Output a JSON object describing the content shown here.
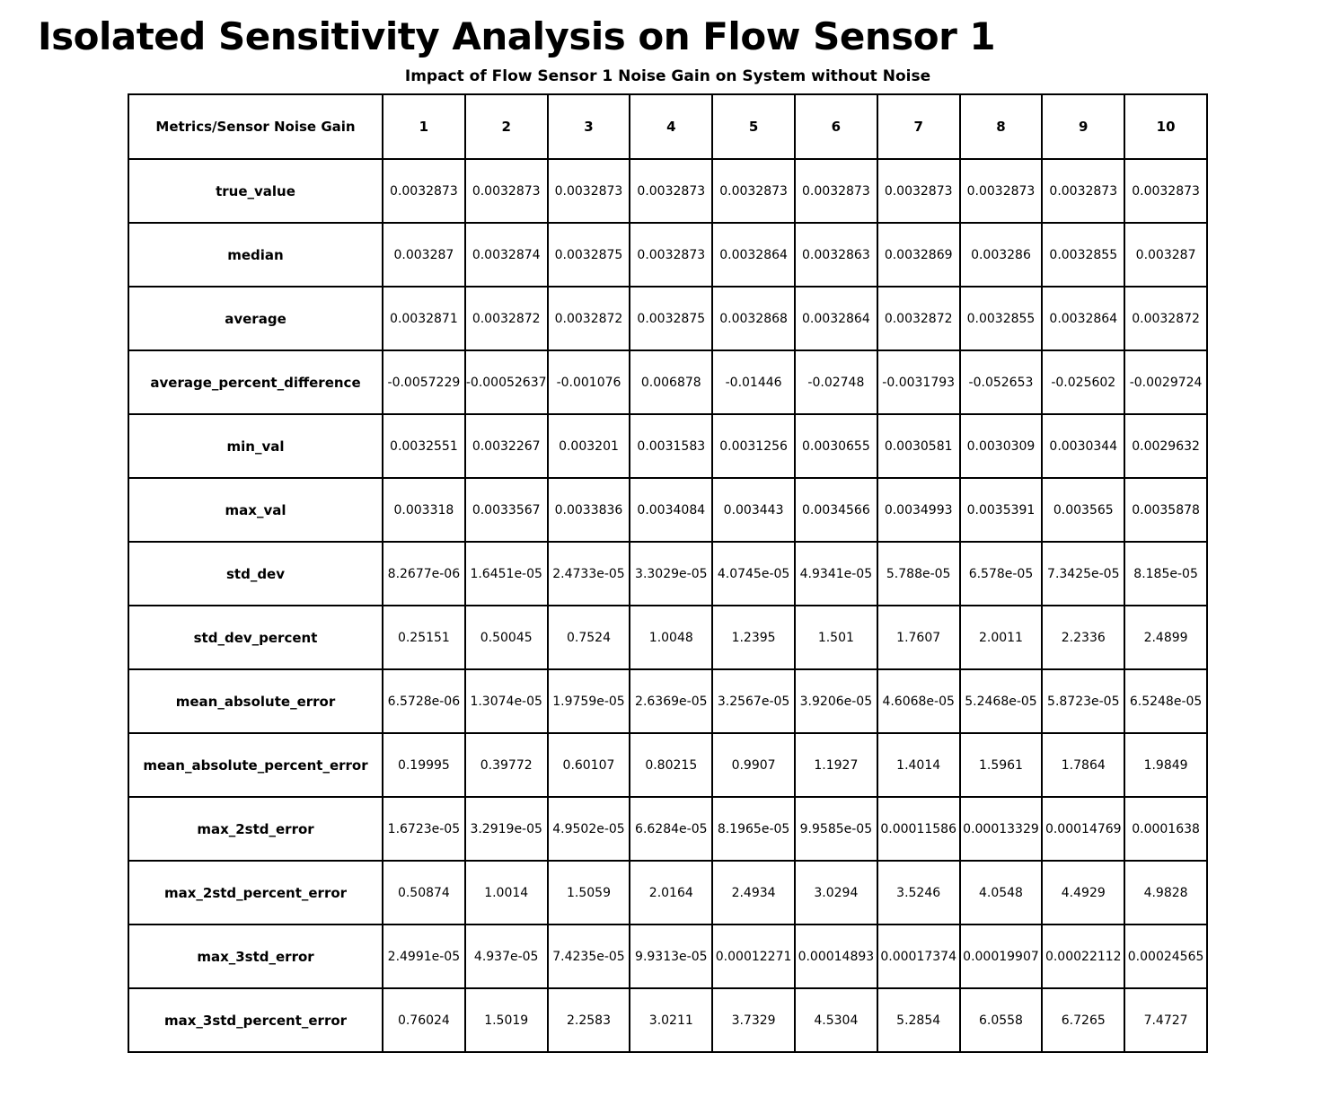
{
  "page": {
    "title": "Isolated Sensitivity Analysis on Flow Sensor 1",
    "subtitle": "Impact of Flow Sensor 1 Noise Gain on System without Noise"
  },
  "chart_data": {
    "type": "table",
    "title": "Impact of Flow Sensor 1 Noise Gain on System without Noise",
    "header": [
      "Metrics/Sensor Noise Gain",
      "1",
      "2",
      "3",
      "4",
      "5",
      "6",
      "7",
      "8",
      "9",
      "10"
    ],
    "rows": [
      {
        "label": "true_value",
        "values": [
          "0.0032873",
          "0.0032873",
          "0.0032873",
          "0.0032873",
          "0.0032873",
          "0.0032873",
          "0.0032873",
          "0.0032873",
          "0.0032873",
          "0.0032873"
        ]
      },
      {
        "label": "median",
        "values": [
          "0.003287",
          "0.0032874",
          "0.0032875",
          "0.0032873",
          "0.0032864",
          "0.0032863",
          "0.0032869",
          "0.003286",
          "0.0032855",
          "0.003287"
        ]
      },
      {
        "label": "average",
        "values": [
          "0.0032871",
          "0.0032872",
          "0.0032872",
          "0.0032875",
          "0.0032868",
          "0.0032864",
          "0.0032872",
          "0.0032855",
          "0.0032864",
          "0.0032872"
        ]
      },
      {
        "label": "average_percent_difference",
        "values": [
          "-0.0057229",
          "-0.00052637",
          "-0.001076",
          "0.006878",
          "-0.01446",
          "-0.02748",
          "-0.0031793",
          "-0.052653",
          "-0.025602",
          "-0.0029724"
        ]
      },
      {
        "label": "min_val",
        "values": [
          "0.0032551",
          "0.0032267",
          "0.003201",
          "0.0031583",
          "0.0031256",
          "0.0030655",
          "0.0030581",
          "0.0030309",
          "0.0030344",
          "0.0029632"
        ]
      },
      {
        "label": "max_val",
        "values": [
          "0.003318",
          "0.0033567",
          "0.0033836",
          "0.0034084",
          "0.003443",
          "0.0034566",
          "0.0034993",
          "0.0035391",
          "0.003565",
          "0.0035878"
        ]
      },
      {
        "label": "std_dev",
        "values": [
          "8.2677e-06",
          "1.6451e-05",
          "2.4733e-05",
          "3.3029e-05",
          "4.0745e-05",
          "4.9341e-05",
          "5.788e-05",
          "6.578e-05",
          "7.3425e-05",
          "8.185e-05"
        ]
      },
      {
        "label": "std_dev_percent",
        "values": [
          "0.25151",
          "0.50045",
          "0.7524",
          "1.0048",
          "1.2395",
          "1.501",
          "1.7607",
          "2.0011",
          "2.2336",
          "2.4899"
        ]
      },
      {
        "label": "mean_absolute_error",
        "values": [
          "6.5728e-06",
          "1.3074e-05",
          "1.9759e-05",
          "2.6369e-05",
          "3.2567e-05",
          "3.9206e-05",
          "4.6068e-05",
          "5.2468e-05",
          "5.8723e-05",
          "6.5248e-05"
        ]
      },
      {
        "label": "mean_absolute_percent_error",
        "values": [
          "0.19995",
          "0.39772",
          "0.60107",
          "0.80215",
          "0.9907",
          "1.1927",
          "1.4014",
          "1.5961",
          "1.7864",
          "1.9849"
        ]
      },
      {
        "label": "max_2std_error",
        "values": [
          "1.6723e-05",
          "3.2919e-05",
          "4.9502e-05",
          "6.6284e-05",
          "8.1965e-05",
          "9.9585e-05",
          "0.00011586",
          "0.00013329",
          "0.00014769",
          "0.0001638"
        ]
      },
      {
        "label": "max_2std_percent_error",
        "values": [
          "0.50874",
          "1.0014",
          "1.5059",
          "2.0164",
          "2.4934",
          "3.0294",
          "3.5246",
          "4.0548",
          "4.4929",
          "4.9828"
        ]
      },
      {
        "label": "max_3std_error",
        "values": [
          "2.4991e-05",
          "4.937e-05",
          "7.4235e-05",
          "9.9313e-05",
          "0.00012271",
          "0.00014893",
          "0.00017374",
          "0.00019907",
          "0.00022112",
          "0.00024565"
        ]
      },
      {
        "label": "max_3std_percent_error",
        "values": [
          "0.76024",
          "1.5019",
          "2.2583",
          "3.0211",
          "3.7329",
          "4.5304",
          "5.2854",
          "6.0558",
          "6.7265",
          "7.4727"
        ]
      }
    ]
  }
}
